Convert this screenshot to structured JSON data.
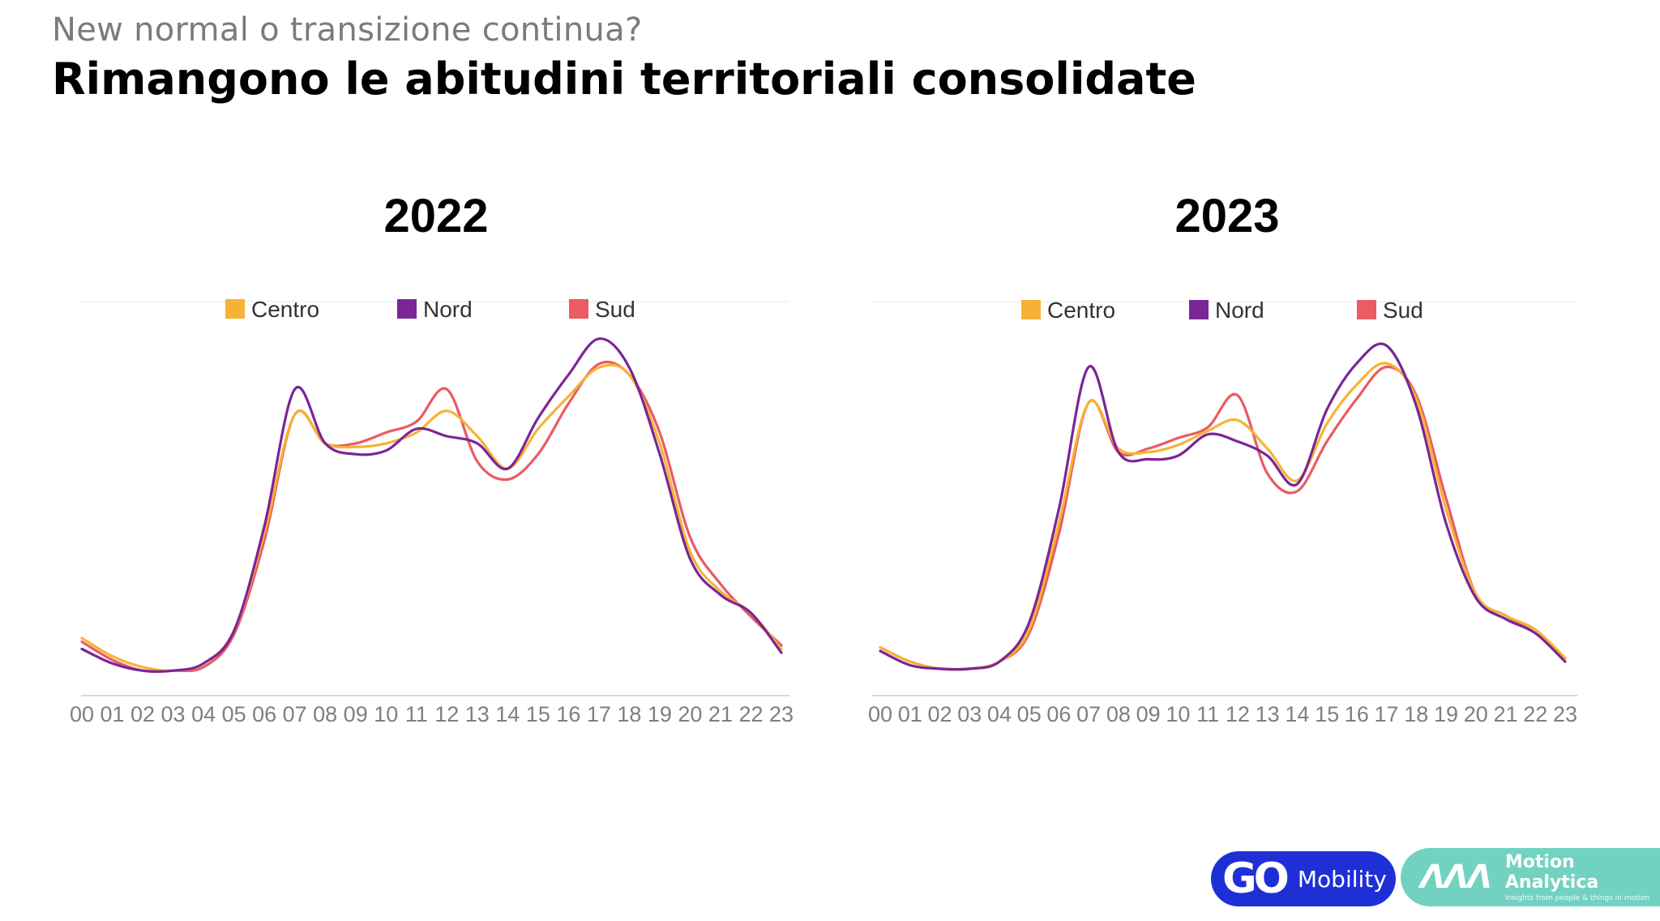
{
  "header": {
    "subtitle": "New normal o transizione continua?",
    "title": "Rimangono le abitudini territoriali consolidate"
  },
  "colors": {
    "Centro": "#f5b335",
    "Nord": "#7b2596",
    "Sud": "#ea5b63"
  },
  "chart_data": [
    {
      "type": "line",
      "title": "2022",
      "legend_position": "top-center",
      "grid": false,
      "x": [
        "00",
        "01",
        "02",
        "03",
        "04",
        "05",
        "06",
        "07",
        "08",
        "09",
        "10",
        "11",
        "12",
        "13",
        "14",
        "15",
        "16",
        "17",
        "18",
        "19",
        "20",
        "21",
        "22",
        "23"
      ],
      "ylim": [
        0,
        100
      ],
      "series": [
        {
          "name": "Centro",
          "values": [
            13,
            8,
            5,
            4,
            6,
            15,
            42,
            75,
            67,
            66,
            67,
            70,
            76,
            69,
            60,
            71,
            80,
            88,
            86,
            67,
            37,
            26,
            20,
            10
          ]
        },
        {
          "name": "Nord",
          "values": [
            10,
            6,
            4,
            4,
            6,
            15,
            44,
            82,
            67,
            64,
            65,
            71,
            69,
            67,
            60,
            74,
            86,
            96,
            88,
            64,
            35,
            25,
            20,
            9
          ]
        },
        {
          "name": "Sud",
          "values": [
            12,
            7,
            4,
            4,
            5,
            14,
            40,
            75,
            67,
            67,
            70,
            73,
            82,
            62,
            57,
            64,
            78,
            89,
            86,
            70,
            41,
            28,
            19,
            11
          ]
        }
      ]
    },
    {
      "type": "line",
      "title": "2023",
      "legend_position": "top-center",
      "grid": false,
      "x": [
        "00",
        "01",
        "02",
        "03",
        "04",
        "05",
        "06",
        "07",
        "08",
        "09",
        "10",
        "11",
        "12",
        "13",
        "14",
        "15",
        "16",
        "17",
        "18",
        "19",
        "20",
        "21",
        "22",
        "23"
      ],
      "ylim": [
        0,
        100
      ],
      "series": [
        {
          "name": "Centro",
          "values": [
            9,
            5,
            3,
            3,
            5,
            14,
            44,
            78,
            65,
            64,
            66,
            70,
            73,
            65,
            56,
            72,
            83,
            89,
            79,
            48,
            24,
            18,
            14,
            6
          ]
        },
        {
          "name": "Nord",
          "values": [
            8,
            4,
            3,
            3,
            5,
            16,
            48,
            88,
            64,
            62,
            63,
            69,
            67,
            63,
            55,
            76,
            89,
            94,
            77,
            44,
            23,
            17,
            13,
            5
          ]
        },
        {
          "name": "Sud",
          "values": [
            9,
            5,
            3,
            3,
            5,
            13,
            41,
            78,
            64,
            65,
            68,
            71,
            80,
            58,
            53,
            67,
            79,
            88,
            80,
            51,
            24,
            18,
            13,
            6
          ]
        }
      ]
    }
  ],
  "logos": {
    "go_mark": "GO",
    "go_text": "Mobility",
    "ma_mark": "ΛΛΛ",
    "ma_title": "Motion Analytica",
    "ma_tagline": "Insights from people & things in motion"
  }
}
